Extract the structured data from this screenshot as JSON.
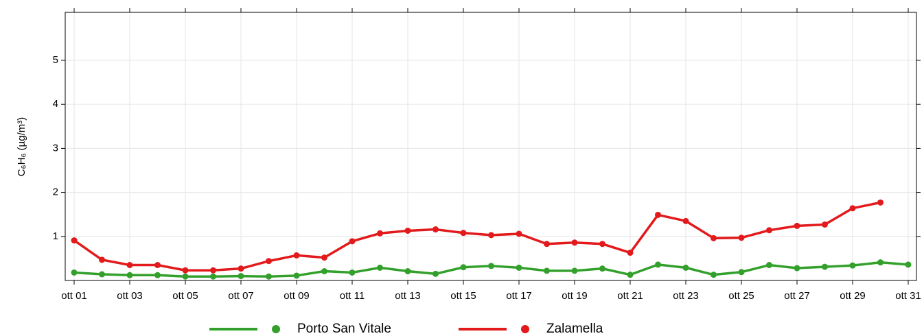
{
  "chart_data": {
    "type": "line",
    "y_label": "C₆H₆ (µg/m³)",
    "categories": [
      "ott 01",
      null,
      "ott 03",
      null,
      "ott 05",
      null,
      "ott 07",
      null,
      "ott 09",
      null,
      "ott 11",
      null,
      "ott 13",
      null,
      "ott 15",
      null,
      "ott 17",
      null,
      "ott 19",
      null,
      "ott 21",
      null,
      "ott 23",
      null,
      "ott 25",
      null,
      "ott 27",
      null,
      "ott 29",
      null,
      "ott 31"
    ],
    "series": [
      {
        "name": "Porto San Vitale",
        "color": "#33a02c",
        "values": [
          0.18,
          0.14,
          0.12,
          0.12,
          0.09,
          0.09,
          0.1,
          0.09,
          0.11,
          0.21,
          0.18,
          0.29,
          0.21,
          0.15,
          0.3,
          0.33,
          0.29,
          0.22,
          0.22,
          0.27,
          0.13,
          0.36,
          0.29,
          0.13,
          0.19,
          0.35,
          0.28,
          0.31,
          0.34,
          0.41,
          0.36
        ]
      },
      {
        "name": "Zalamella",
        "color": "#e31a1c",
        "values": [
          0.91,
          0.47,
          0.35,
          0.35,
          0.23,
          0.23,
          0.27,
          0.44,
          0.57,
          0.52,
          0.89,
          1.07,
          1.13,
          1.16,
          1.08,
          1.03,
          1.06,
          0.83,
          0.86,
          0.83,
          0.63,
          1.49,
          1.35,
          0.96,
          0.97,
          1.14,
          1.24,
          1.27,
          1.64,
          1.77,
          null
        ]
      }
    ],
    "ylim": [
      0,
      6.09
    ],
    "yticks": [
      1,
      2,
      3,
      4,
      5
    ],
    "grid": true,
    "legend": "bottom"
  }
}
